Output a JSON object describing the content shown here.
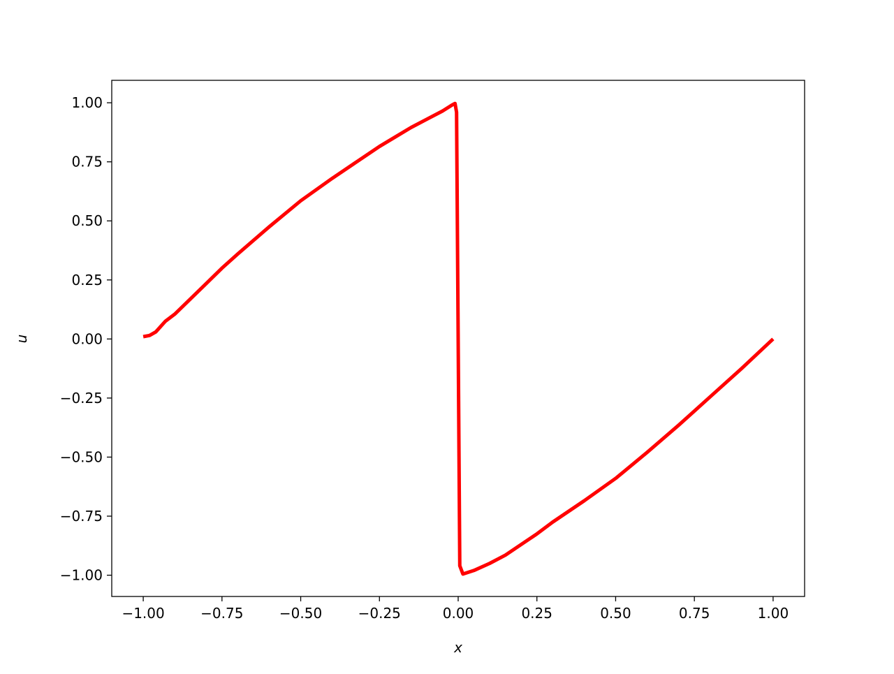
{
  "chart_data": {
    "type": "line",
    "xlabel": "x",
    "ylabel": "u",
    "xlim": [
      -1.1,
      1.1
    ],
    "ylim": [
      -1.09,
      1.095
    ],
    "grid": false,
    "xticks": [
      "−1.00",
      "−0.75",
      "−0.50",
      "−0.25",
      "0.00",
      "0.25",
      "0.50",
      "0.75",
      "1.00"
    ],
    "xtick_values": [
      -1,
      -0.75,
      -0.5,
      -0.25,
      0,
      0.25,
      0.5,
      0.75,
      1
    ],
    "yticks": [
      "−1.00",
      "−0.75",
      "−0.50",
      "−0.25",
      "0.00",
      "0.25",
      "0.50",
      "0.75",
      "1.00"
    ],
    "ytick_values": [
      -1,
      -0.75,
      -0.5,
      -0.25,
      0,
      0.25,
      0.5,
      0.75,
      1
    ],
    "series": [
      {
        "color": "#ff0000",
        "x": [
          -1.0,
          -0.98,
          -0.96,
          -0.93,
          -0.9,
          -0.8,
          -0.75,
          -0.7,
          -0.6,
          -0.5,
          -0.4,
          -0.3,
          -0.25,
          -0.2,
          -0.15,
          -0.1,
          -0.05,
          -0.02,
          -0.01,
          -0.005,
          0.005,
          0.015,
          0.05,
          0.1,
          0.15,
          0.2,
          0.25,
          0.3,
          0.4,
          0.5,
          0.6,
          0.7,
          0.75,
          0.8,
          0.9,
          1.0
        ],
        "y": [
          0.01,
          0.015,
          0.03,
          0.075,
          0.105,
          0.235,
          0.3,
          0.36,
          0.475,
          0.585,
          0.68,
          0.77,
          0.815,
          0.855,
          0.895,
          0.93,
          0.965,
          0.99,
          0.997,
          0.96,
          -0.96,
          -0.995,
          -0.98,
          -0.95,
          -0.915,
          -0.87,
          -0.825,
          -0.775,
          -0.685,
          -0.59,
          -0.48,
          -0.365,
          -0.305,
          -0.245,
          -0.125,
          0.0
        ]
      }
    ]
  }
}
